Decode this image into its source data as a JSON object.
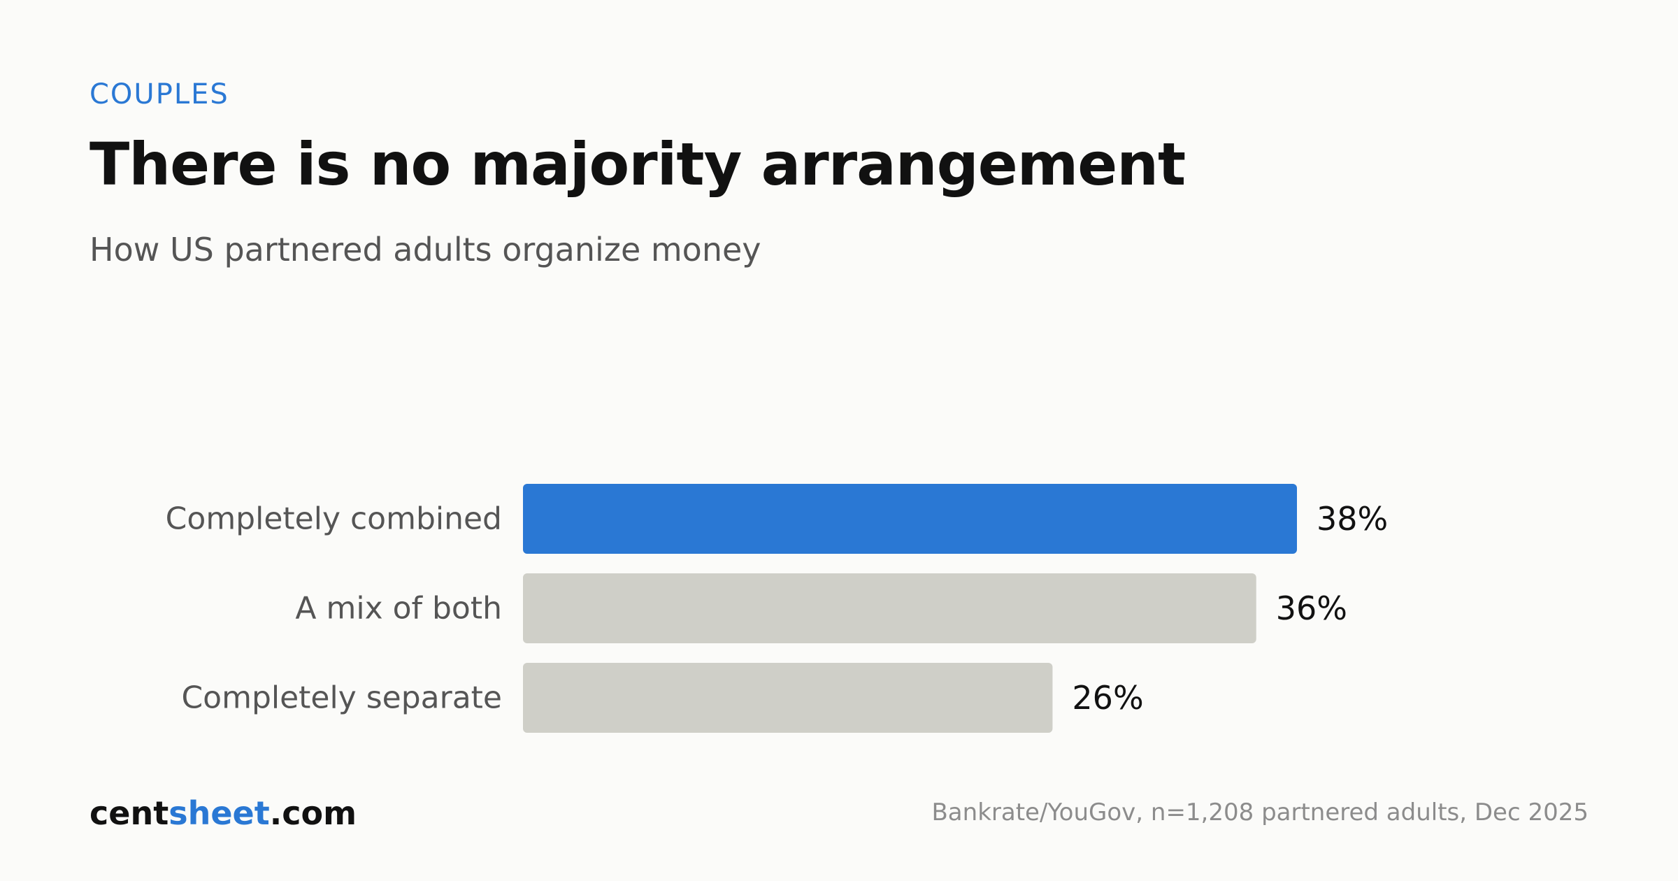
{
  "header": {
    "eyebrow": "COUPLES",
    "title": "There is no majority arrangement",
    "subtitle": "How US partnered adults organize money"
  },
  "footer": {
    "brand_part1": "cent",
    "brand_part2": "sheet",
    "brand_part3": ".com",
    "source": "Bankrate/YouGov, n=1,208 partnered adults, Dec 2025"
  },
  "colors": {
    "highlight": "#2a78d4",
    "muted": "#cfcfc8",
    "label": "#555555",
    "value": "#111111"
  },
  "chart_data": {
    "type": "bar",
    "orientation": "horizontal",
    "categories": [
      "Completely combined",
      "A mix of both",
      "Completely separate"
    ],
    "values": [
      38,
      36,
      26
    ],
    "value_labels": [
      "38%",
      "36%",
      "26%"
    ],
    "highlight_index": 0,
    "xlim": [
      0,
      100
    ],
    "grid": false,
    "legend": "none"
  }
}
